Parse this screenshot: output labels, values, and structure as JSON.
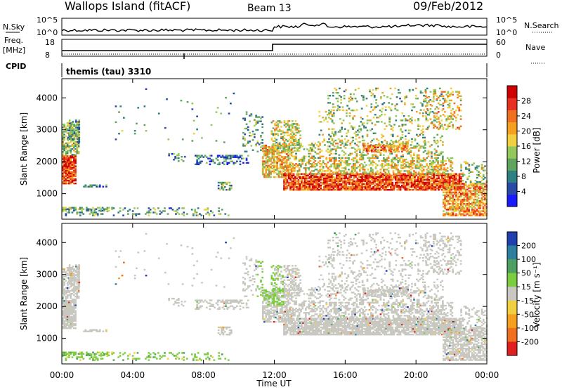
{
  "header": {
    "station": "Wallops Island (fitACF)",
    "beam": "Beam 13",
    "date": "09/Feb/2012"
  },
  "params_panel": {
    "nsky_label": "N.Sky",
    "nsky_ticks": [
      "10^5",
      "10^0"
    ],
    "nsearch_label": "N.Search",
    "nsearch_ticks": [
      "10^5",
      "10^0"
    ],
    "freq_label": "Freq.",
    "freq_unit": "[MHz]",
    "freq_ticks": [
      "18",
      "8"
    ],
    "nave_label": "Nave",
    "nave_ticks": [
      "60",
      "0"
    ],
    "cpid_label": "CPID",
    "cpid_value": "themis (tau) 3310"
  },
  "chart_data": [
    {
      "type": "heatmap",
      "name": "power",
      "ylabel": "Slant Range [km]",
      "ylim": [
        200,
        4600
      ],
      "yticks": [
        1000,
        2000,
        3000,
        4000
      ],
      "xlim": [
        0,
        24
      ],
      "colorbar": {
        "label": "Power [dB]",
        "ticks": [
          "4",
          "8",
          "12",
          "16",
          "20",
          "24",
          "28"
        ],
        "colors": [
          "#1a1aff",
          "#2a4aa8",
          "#2e7f83",
          "#5fa35e",
          "#93c85a",
          "#f0d040",
          "#f5a020",
          "#f07020",
          "#e83020",
          "#d00000"
        ]
      }
    },
    {
      "type": "heatmap",
      "name": "velocity",
      "ylabel": "Slant Range [km]",
      "ylim": [
        200,
        4600
      ],
      "yticks": [
        1000,
        2000,
        3000,
        4000
      ],
      "xlim": [
        0,
        24
      ],
      "colorbar": {
        "label": "Velocity [m s⁻¹]",
        "ticks": [
          "200",
          "100",
          "50",
          "15",
          "-15",
          "-50",
          "-100",
          "-200"
        ],
        "colors": [
          "#2040b0",
          "#2e7f9e",
          "#4fa060",
          "#7ccc40",
          "#c8c8c0",
          "#f0d040",
          "#f5a020",
          "#f07020",
          "#e02020"
        ]
      }
    }
  ],
  "x_axis": {
    "label": "Time UT",
    "ticks": [
      "00:00",
      "04:00",
      "08:00",
      "12:00",
      "16:00",
      "20:00",
      "00:00"
    ]
  },
  "colors": {
    "grey_scatter": "#c8c8c0"
  }
}
